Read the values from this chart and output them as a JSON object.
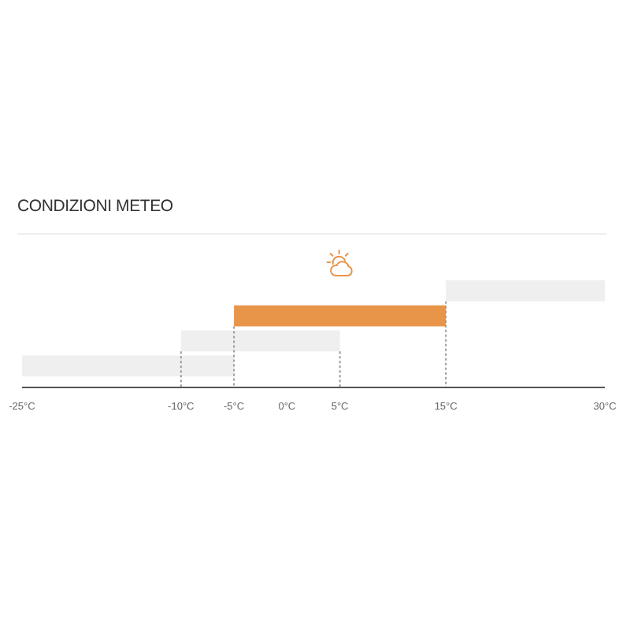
{
  "chart_data": {
    "type": "bar",
    "orientation": "horizontal",
    "title": "CONDIZIONI METEO",
    "categories": [
      null,
      null,
      null,
      null
    ],
    "base": [
      15,
      -5,
      -10,
      -25
    ],
    "values": [
      15,
      20,
      15,
      20
    ],
    "colors": [
      "#efefef",
      "#e8954a",
      "#efefef",
      "#efefef"
    ],
    "xlim": [
      -25,
      30
    ],
    "xticks": [
      {
        "value": -25,
        "label": "-25°C"
      },
      {
        "value": -10,
        "label": "-10°C"
      },
      {
        "value": -5,
        "label": "-5°C"
      },
      {
        "value": 0,
        "label": "0°C"
      },
      {
        "value": 5,
        "label": "5°C"
      },
      {
        "value": 15,
        "label": "15°C"
      },
      {
        "value": 30,
        "label": "30°C"
      }
    ],
    "ref_lines": [
      {
        "axis": "x",
        "value": -10,
        "line_style": "dotted",
        "color": "#999999"
      },
      {
        "axis": "x",
        "value": -5,
        "line_style": "dotted",
        "color": "#999999"
      },
      {
        "axis": "x",
        "value": 5,
        "line_style": "dotted",
        "color": "#999999"
      },
      {
        "axis": "x",
        "value": 15,
        "line_style": "dotted",
        "color": "#999999"
      }
    ]
  }
}
